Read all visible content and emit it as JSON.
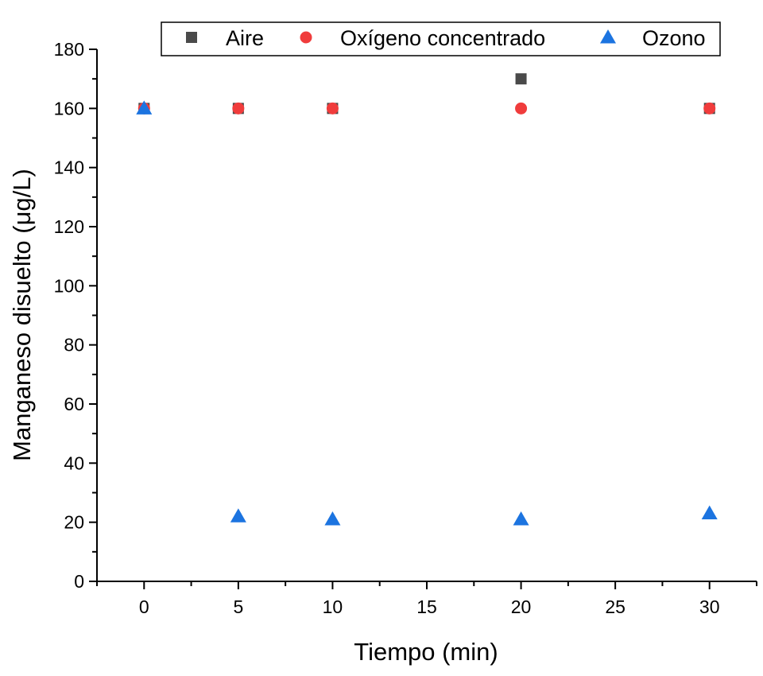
{
  "chart_data": {
    "type": "scatter",
    "xlabel": "Tiempo (min)",
    "ylabel": "Manganeso disuelto (μg/L)",
    "xlim": [
      -2.5,
      32.5
    ],
    "ylim": [
      0,
      180
    ],
    "xticks": [
      0,
      5,
      10,
      15,
      20,
      25,
      30
    ],
    "yticks": [
      0,
      20,
      40,
      60,
      80,
      100,
      120,
      140,
      160,
      180
    ],
    "grid": false,
    "legend_position": "top-right",
    "series": [
      {
        "name": "Aire",
        "marker": "square",
        "color": "#4a4a4a",
        "points": [
          [
            0,
            160
          ],
          [
            5,
            160
          ],
          [
            10,
            160
          ],
          [
            20,
            170
          ],
          [
            30,
            160
          ]
        ]
      },
      {
        "name": "Oxígeno concentrado",
        "marker": "circle",
        "color": "#f03c3c",
        "points": [
          [
            0,
            160
          ],
          [
            5,
            160
          ],
          [
            10,
            160
          ],
          [
            20,
            160
          ],
          [
            30,
            160
          ]
        ]
      },
      {
        "name": "Ozono",
        "marker": "triangle",
        "color": "#1c74e0",
        "points": [
          [
            0,
            160
          ],
          [
            5,
            22
          ],
          [
            10,
            21
          ],
          [
            20,
            21
          ],
          [
            30,
            23
          ]
        ]
      }
    ]
  }
}
